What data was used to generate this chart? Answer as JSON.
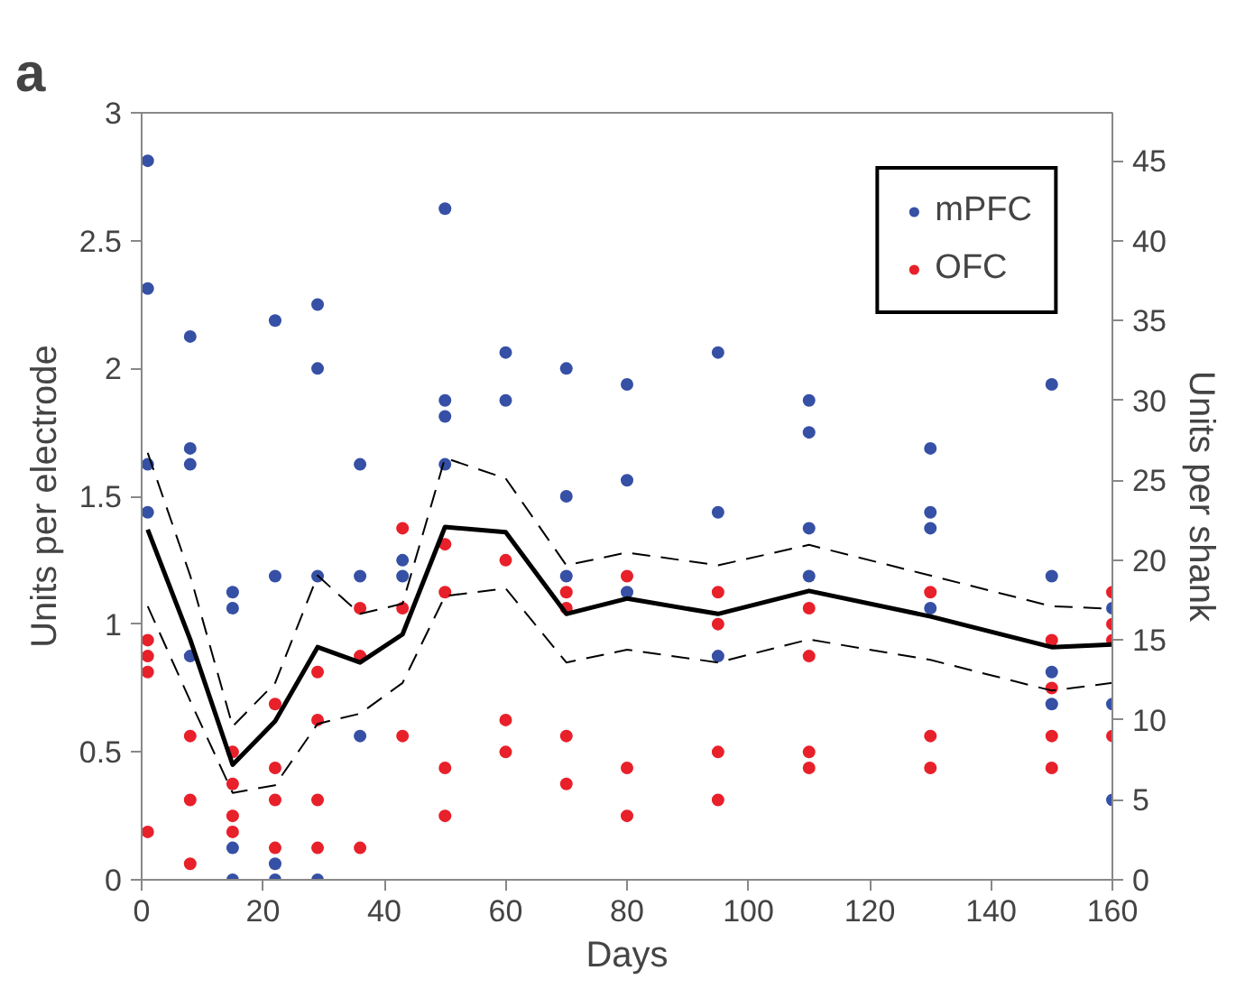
{
  "chart_data": {
    "type": "scatter",
    "annotations": [
      "a"
    ],
    "xlabel": "Days",
    "ylabel": "Units per electrode",
    "y2label": "Units per shank",
    "xlim": [
      0,
      160
    ],
    "xticks": [
      0,
      20,
      40,
      60,
      80,
      100,
      120,
      140,
      160
    ],
    "ylim": [
      0,
      3
    ],
    "yticks": [
      0,
      0.5,
      1,
      1.5,
      2,
      2.5,
      3
    ],
    "y2lim": [
      0,
      48
    ],
    "y2ticks": [
      0,
      5,
      10,
      15,
      20,
      25,
      30,
      35,
      40,
      45
    ],
    "legend": "top right",
    "grid": false,
    "marker": "circle",
    "series": [
      {
        "name": "mPFC",
        "color": "#3550a5",
        "axis": "y2",
        "x": [
          1,
          1,
          1,
          1,
          8,
          8,
          8,
          8,
          15,
          15,
          15,
          15,
          22,
          22,
          22,
          22,
          29,
          29,
          29,
          29,
          36,
          36,
          36,
          43,
          43,
          50,
          50,
          50,
          50,
          60,
          60,
          70,
          70,
          70,
          80,
          80,
          80,
          95,
          95,
          95,
          110,
          110,
          110,
          110,
          130,
          130,
          130,
          130,
          150,
          150,
          150,
          150,
          160,
          160,
          160
        ],
        "values": [
          45,
          37,
          26,
          23,
          34,
          27,
          26,
          14,
          18,
          17,
          2,
          0,
          35,
          19,
          1,
          0,
          36,
          32,
          19,
          0,
          26,
          19,
          9,
          20,
          19,
          42,
          30,
          29,
          26,
          33,
          30,
          32,
          24,
          19,
          31,
          25,
          18,
          33,
          23,
          14,
          30,
          28,
          22,
          19,
          27,
          23,
          22,
          17,
          31,
          19,
          13,
          11,
          17,
          11,
          5
        ]
      },
      {
        "name": "OFC",
        "color": "#e8202a",
        "axis": "y2",
        "x": [
          1,
          1,
          1,
          1,
          8,
          8,
          8,
          15,
          15,
          15,
          15,
          22,
          22,
          22,
          22,
          29,
          29,
          29,
          29,
          36,
          36,
          36,
          43,
          43,
          43,
          50,
          50,
          50,
          50,
          60,
          60,
          60,
          70,
          70,
          70,
          70,
          80,
          80,
          80,
          95,
          95,
          95,
          95,
          110,
          110,
          110,
          110,
          130,
          130,
          130,
          150,
          150,
          150,
          150,
          160,
          160,
          160,
          160
        ],
        "values": [
          15,
          14,
          13,
          3,
          9,
          5,
          1,
          8,
          6,
          4,
          3,
          11,
          7,
          5,
          2,
          13,
          10,
          5,
          2,
          17,
          14,
          2,
          22,
          17,
          9,
          21,
          18,
          7,
          4,
          20,
          10,
          8,
          18,
          17,
          9,
          6,
          19,
          7,
          4,
          18,
          16,
          8,
          5,
          17,
          14,
          8,
          7,
          18,
          9,
          7,
          15,
          12,
          9,
          7,
          18,
          16,
          15,
          9
        ]
      },
      {
        "type": "line",
        "color": "#000000",
        "line_style": "solid",
        "marker": "none",
        "x": [
          1,
          8,
          15,
          22,
          29,
          36,
          43,
          50,
          60,
          70,
          80,
          95,
          110,
          130,
          150,
          160
        ],
        "values": [
          1.37,
          0.94,
          0.45,
          0.62,
          0.91,
          0.85,
          0.96,
          1.38,
          1.36,
          1.04,
          1.1,
          1.04,
          1.13,
          1.03,
          0.91,
          0.92
        ]
      },
      {
        "type": "line",
        "color": "#000000",
        "line_style": "dashed",
        "marker": "none",
        "x": [
          1,
          8,
          15,
          22,
          29,
          36,
          43,
          50,
          60,
          70,
          80,
          95,
          110,
          130,
          150,
          160
        ],
        "values": [
          1.07,
          0.7,
          0.34,
          0.37,
          0.61,
          0.65,
          0.77,
          1.11,
          1.14,
          0.85,
          0.9,
          0.85,
          0.94,
          0.86,
          0.74,
          0.77
        ]
      },
      {
        "type": "line",
        "color": "#000000",
        "line_style": "dashed",
        "marker": "none",
        "x": [
          1,
          8,
          15,
          22,
          29,
          36,
          43,
          50,
          60,
          70,
          80,
          95,
          110,
          130,
          150,
          160
        ],
        "values": [
          1.67,
          1.19,
          0.6,
          0.77,
          1.19,
          1.04,
          1.08,
          1.65,
          1.57,
          1.23,
          1.28,
          1.23,
          1.31,
          1.19,
          1.07,
          1.06
        ]
      }
    ]
  }
}
